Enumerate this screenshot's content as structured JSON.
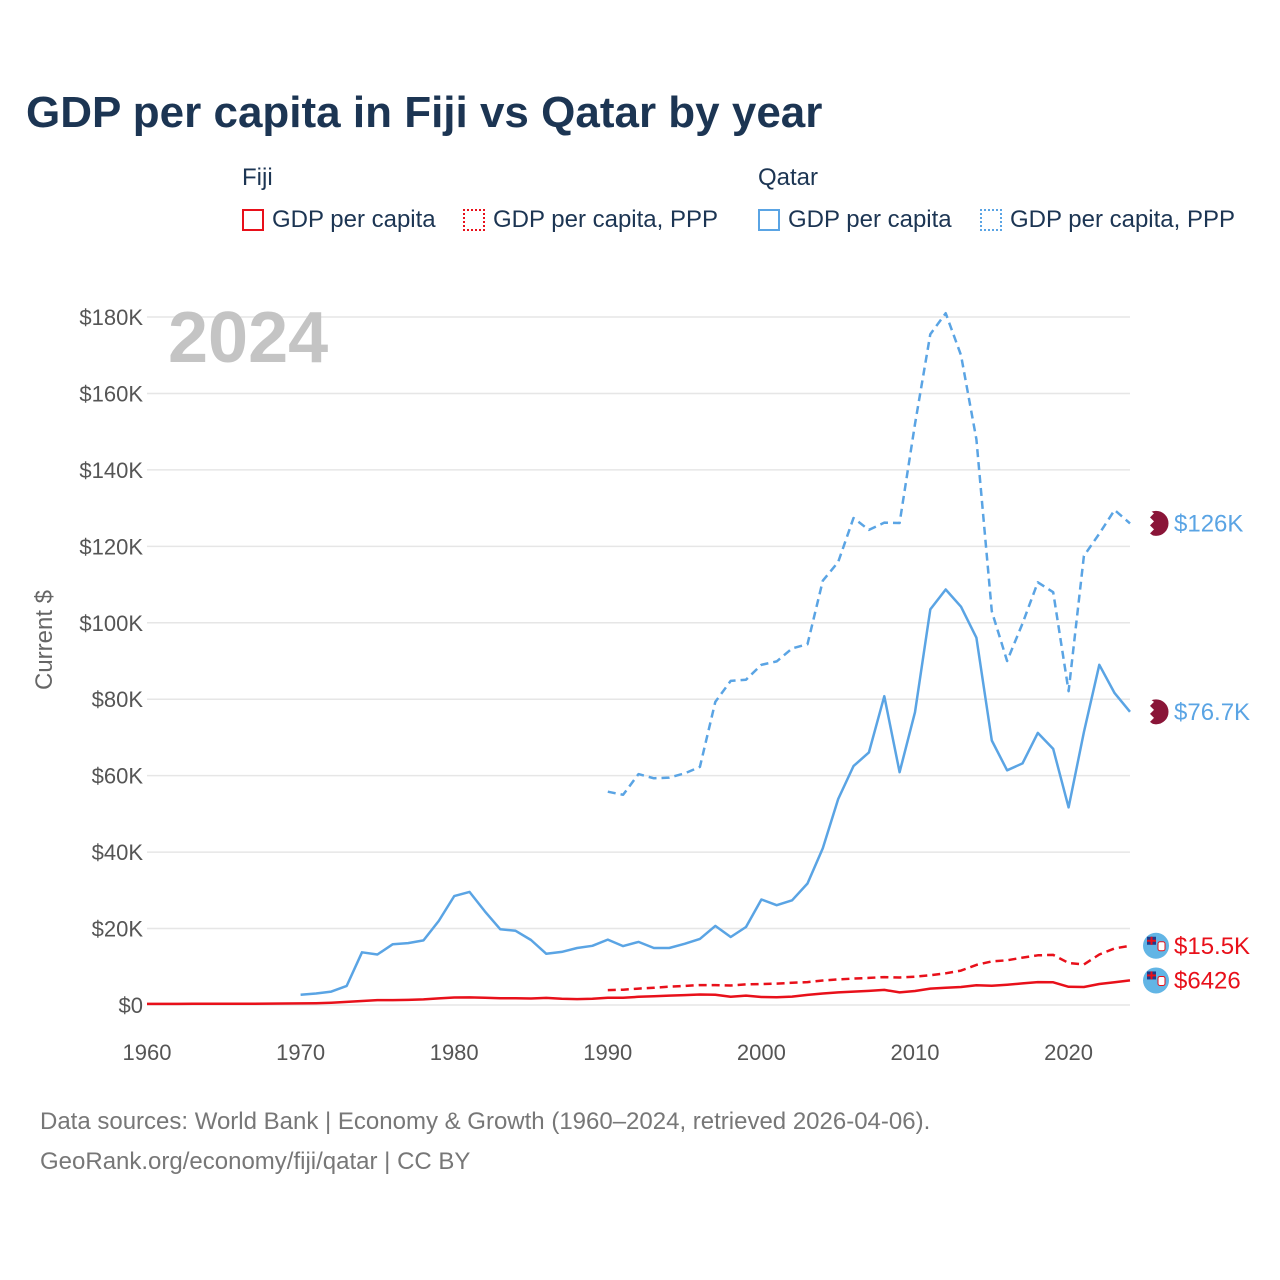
{
  "title": "GDP per capita in Fiji vs Qatar by year",
  "legend": {
    "fiji_title": "Fiji",
    "qatar_title": "Qatar",
    "fiji_gdp": "GDP per capita",
    "fiji_ppp": "GDP per capita, PPP",
    "qatar_gdp": "GDP per capita",
    "qatar_ppp": "GDP per capita, PPP"
  },
  "source": {
    "line1": "Data sources: World Bank | Economy & Growth (1960–2024, retrieved 2026-04-06).",
    "line2": "GeoRank.org/economy/fiji/qatar | CC BY"
  },
  "colors": {
    "fiji": "#e8101a",
    "qatar": "#5aa4e4",
    "qatar_flag": "#8a1538",
    "fiji_flag": "#62b5e5"
  },
  "chart_data": {
    "type": "line",
    "title": "GDP per capita in Fiji vs Qatar by year",
    "year_label": "2024",
    "xlabel": "",
    "ylabel": "Current $",
    "xlim": [
      1960,
      2024
    ],
    "ylim": [
      0,
      180000
    ],
    "x_ticks": [
      1960,
      1970,
      1980,
      1990,
      2000,
      2010,
      2020
    ],
    "y_ticks": [
      0,
      20000,
      40000,
      60000,
      80000,
      100000,
      120000,
      140000,
      160000,
      180000
    ],
    "y_tick_labels": [
      "$0",
      "$20K",
      "$40K",
      "$60K",
      "$80K",
      "$100K",
      "$120K",
      "$140K",
      "$160K",
      "$180K"
    ],
    "grid": true,
    "series": [
      {
        "name": "Fiji GDP per capita",
        "country": "Fiji",
        "style": "solid",
        "color": "#e8101a",
        "end_label": "$6426",
        "x": [
          1960,
          1961,
          1962,
          1963,
          1964,
          1965,
          1966,
          1967,
          1968,
          1969,
          1970,
          1971,
          1972,
          1973,
          1974,
          1975,
          1976,
          1977,
          1978,
          1979,
          1980,
          1981,
          1982,
          1983,
          1984,
          1985,
          1986,
          1987,
          1988,
          1989,
          1990,
          1991,
          1992,
          1993,
          1994,
          1995,
          1996,
          1997,
          1998,
          1999,
          2000,
          2001,
          2002,
          2003,
          2004,
          2005,
          2006,
          2007,
          2008,
          2009,
          2010,
          2011,
          2012,
          2013,
          2014,
          2015,
          2016,
          2017,
          2018,
          2019,
          2020,
          2021,
          2022,
          2023,
          2024
        ],
        "values": [
          280,
          290,
          300,
          310,
          320,
          330,
          340,
          350,
          360,
          380,
          420,
          480,
          590,
          800,
          1050,
          1280,
          1290,
          1330,
          1470,
          1720,
          1960,
          2000,
          1900,
          1760,
          1780,
          1700,
          1850,
          1650,
          1550,
          1620,
          1900,
          1900,
          2150,
          2280,
          2450,
          2600,
          2750,
          2700,
          2150,
          2450,
          2100,
          2050,
          2200,
          2650,
          3000,
          3300,
          3500,
          3700,
          3950,
          3300,
          3650,
          4300,
          4500,
          4700,
          5150,
          5050,
          5300,
          5650,
          6000,
          5950,
          4750,
          4700,
          5500,
          5950,
          6426
        ]
      },
      {
        "name": "Fiji GDP per capita, PPP",
        "country": "Fiji",
        "style": "dashed",
        "color": "#e8101a",
        "end_label": "$15.5K",
        "x": [
          1990,
          1991,
          1992,
          1993,
          1994,
          1995,
          1996,
          1997,
          1998,
          1999,
          2000,
          2001,
          2002,
          2003,
          2004,
          2005,
          2006,
          2007,
          2008,
          2009,
          2010,
          2011,
          2012,
          2013,
          2014,
          2015,
          2016,
          2017,
          2018,
          2019,
          2020,
          2021,
          2022,
          2023,
          2024
        ],
        "values": [
          3900,
          4000,
          4300,
          4500,
          4800,
          5000,
          5200,
          5200,
          5100,
          5400,
          5500,
          5600,
          5800,
          6000,
          6400,
          6700,
          6900,
          7100,
          7300,
          7200,
          7400,
          7800,
          8300,
          9000,
          10500,
          11400,
          11700,
          12400,
          13000,
          13100,
          11000,
          10600,
          13200,
          14800,
          15500
        ]
      },
      {
        "name": "Qatar GDP per capita",
        "country": "Qatar",
        "style": "solid",
        "color": "#5aa4e4",
        "end_label": "$76.7K",
        "x": [
          1970,
          1971,
          1972,
          1973,
          1974,
          1975,
          1976,
          1977,
          1978,
          1979,
          1980,
          1981,
          1982,
          1983,
          1984,
          1985,
          1986,
          1987,
          1988,
          1989,
          1990,
          1991,
          1992,
          1993,
          1994,
          1995,
          1996,
          1997,
          1998,
          1999,
          2000,
          2001,
          2002,
          2003,
          2004,
          2005,
          2006,
          2007,
          2008,
          2009,
          2010,
          2011,
          2012,
          2013,
          2014,
          2015,
          2016,
          2017,
          2018,
          2019,
          2020,
          2021,
          2022,
          2023,
          2024
        ],
        "values": [
          2700,
          3000,
          3500,
          5000,
          13800,
          13200,
          15900,
          16200,
          16900,
          22000,
          28500,
          29600,
          24500,
          19800,
          19400,
          17000,
          13400,
          13900,
          14900,
          15500,
          17100,
          15400,
          16500,
          14900,
          14900,
          16000,
          17300,
          20700,
          17800,
          20400,
          27600,
          26100,
          27400,
          31800,
          41000,
          53900,
          62500,
          66100,
          80800,
          60900,
          76600,
          103500,
          108700,
          104200,
          96100,
          69200,
          61400,
          63200,
          71200,
          67000,
          51700,
          71400,
          89000,
          81600,
          76700
        ]
      },
      {
        "name": "Qatar GDP per capita, PPP",
        "country": "Qatar",
        "style": "dashed",
        "color": "#5aa4e4",
        "end_label": "$126K",
        "x": [
          1990,
          1991,
          1992,
          1993,
          1994,
          1995,
          1996,
          1997,
          1998,
          1999,
          2000,
          2001,
          2002,
          2003,
          2004,
          2005,
          2006,
          2007,
          2008,
          2009,
          2010,
          2011,
          2012,
          2013,
          2014,
          2015,
          2016,
          2017,
          2018,
          2019,
          2020,
          2021,
          2022,
          2023,
          2024
        ],
        "values": [
          55800,
          55000,
          60400,
          59300,
          59500,
          60600,
          62300,
          79300,
          84800,
          85100,
          89000,
          89900,
          93300,
          94400,
          111000,
          115900,
          127400,
          124300,
          126200,
          126100,
          152000,
          175500,
          181000,
          170000,
          148000,
          103000,
          90000,
          99800,
          110600,
          108000,
          82100,
          117500,
          123300,
          129500,
          126000
        ]
      }
    ]
  }
}
